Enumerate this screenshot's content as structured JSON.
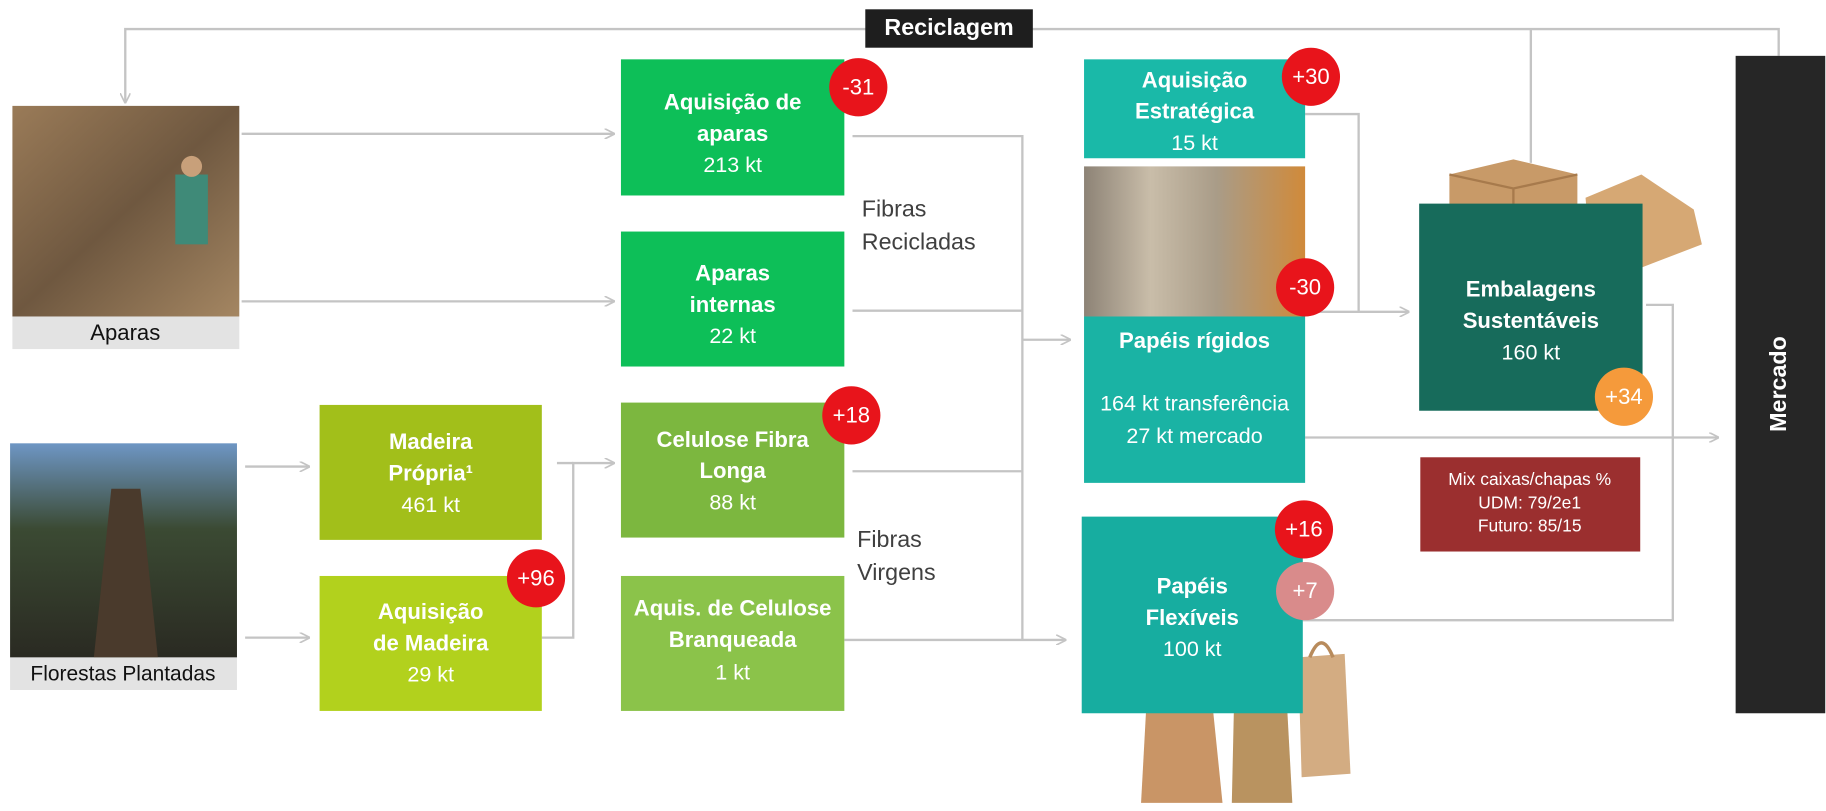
{
  "banner": "Reciclagem",
  "sources": [
    "Aparas",
    "Florestas Plantadas"
  ],
  "nodes": [
    {
      "lines": [
        "Aquisição de",
        "aparas",
        "213 kt"
      ],
      "badges": [
        "-31"
      ]
    },
    {
      "lines": [
        "Aparas",
        "internas",
        "22 kt"
      ],
      "badges": []
    },
    {
      "lines": [
        "Madeira",
        "Própria¹",
        "461 kt"
      ],
      "badges": []
    },
    {
      "lines": [
        "Aquisição",
        "de Madeira",
        "29 kt"
      ],
      "badges": [
        "+96"
      ]
    },
    {
      "lines": [
        "Celulose Fibra",
        "Longa",
        "88 kt"
      ],
      "badges": [
        "+18"
      ]
    },
    {
      "lines": [
        "Aquis. de Celulose",
        "Branqueada",
        "1 kt"
      ],
      "badges": []
    },
    {
      "lines": [
        "Aquisição",
        "Estratégica",
        "15 kt"
      ],
      "badges": [
        "+30"
      ]
    },
    {
      "lines": [
        "Papéis rígidos",
        "164 kt transferência",
        "27 kt mercado"
      ],
      "badges": [
        "-30"
      ]
    },
    {
      "lines": [
        "Papéis",
        "Flexíveis",
        "100 kt"
      ],
      "badges": [
        "+16",
        "+7"
      ]
    },
    {
      "lines": [
        "Embalagens",
        "Sustentáveis",
        "160 kt"
      ],
      "badges": [
        "+34"
      ]
    }
  ],
  "side_labels": [
    [
      "Fibras",
      "Recicladas"
    ],
    [
      "Fibras",
      "Virgens"
    ]
  ],
  "note": [
    "Mix caixas/chapas %",
    "UDM: 79/2e1",
    "Futuro: 85/15"
  ],
  "market": "Mercado"
}
